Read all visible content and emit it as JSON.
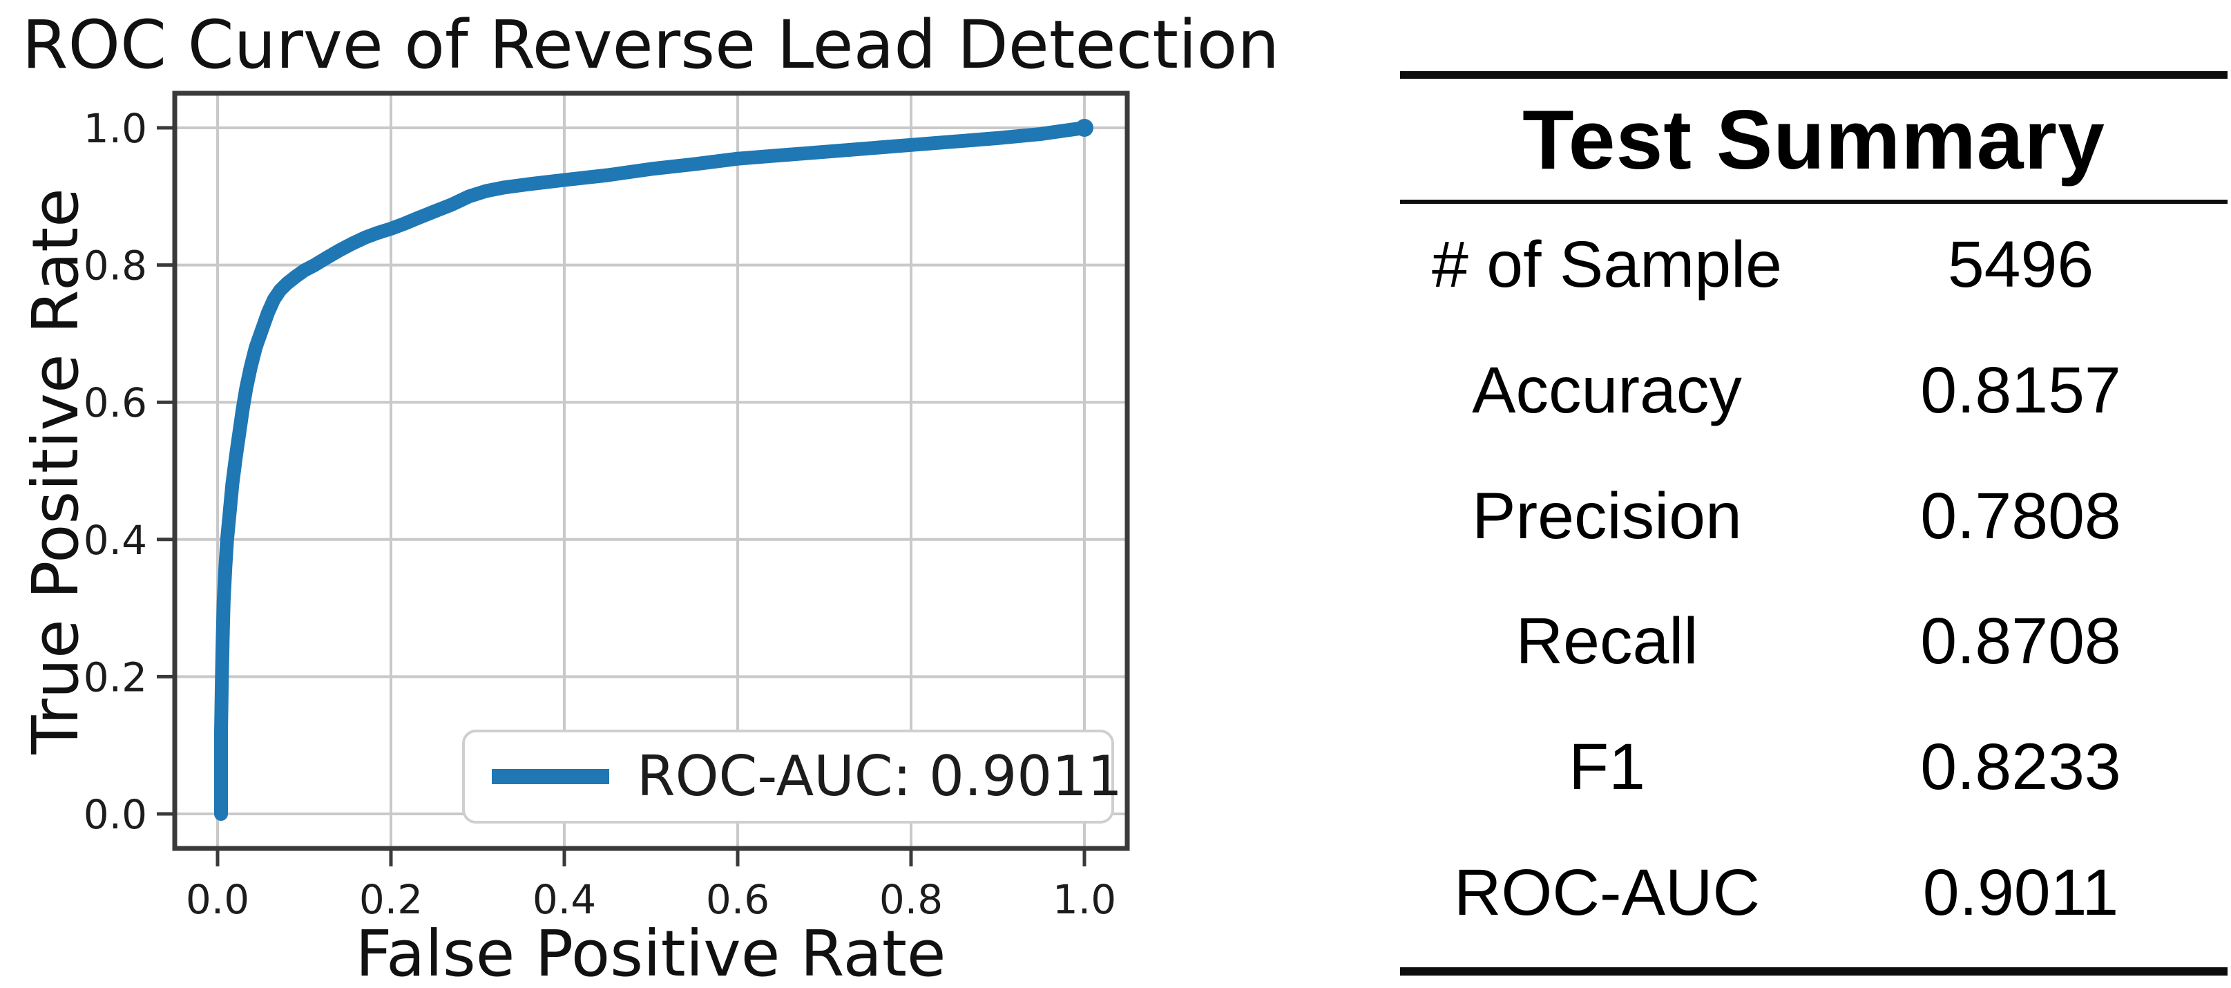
{
  "chart": {
    "title": "ROC Curve of Reverse Lead Detection",
    "xlabel": "False Positive Rate",
    "ylabel": "True Positive Rate",
    "legend_label": "ROC-AUC: 0.9011"
  },
  "chart_data": {
    "type": "line",
    "title": "ROC Curve of Reverse Lead Detection",
    "xlabel": "False Positive Rate",
    "ylabel": "True Positive Rate",
    "xlim": [
      -0.05,
      1.05
    ],
    "ylim": [
      -0.05,
      1.05
    ],
    "x_ticks": [
      0.0,
      0.2,
      0.4,
      0.6,
      0.8,
      1.0
    ],
    "y_ticks": [
      0.0,
      0.2,
      0.4,
      0.6,
      0.8,
      1.0
    ],
    "x_tick_labels": [
      "0.0",
      "0.2",
      "0.4",
      "0.6",
      "0.8",
      "1.0"
    ],
    "y_tick_labels": [
      "0.0",
      "0.2",
      "0.4",
      "0.6",
      "0.8",
      "1.0"
    ],
    "grid": true,
    "legend_position": "lower right",
    "series": [
      {
        "name": "ROC-AUC: 0.9011",
        "color": "#1f77b4",
        "roc_auc": 0.9011,
        "points": [
          [
            0.004,
            0.0
          ],
          [
            0.004,
            0.12
          ],
          [
            0.005,
            0.2
          ],
          [
            0.006,
            0.26
          ],
          [
            0.007,
            0.31
          ],
          [
            0.009,
            0.36
          ],
          [
            0.011,
            0.4
          ],
          [
            0.014,
            0.44
          ],
          [
            0.017,
            0.48
          ],
          [
            0.021,
            0.52
          ],
          [
            0.025,
            0.555
          ],
          [
            0.029,
            0.59
          ],
          [
            0.033,
            0.62
          ],
          [
            0.038,
            0.65
          ],
          [
            0.044,
            0.68
          ],
          [
            0.051,
            0.705
          ],
          [
            0.058,
            0.73
          ],
          [
            0.065,
            0.75
          ],
          [
            0.072,
            0.763
          ],
          [
            0.08,
            0.773
          ],
          [
            0.09,
            0.783
          ],
          [
            0.1,
            0.792
          ],
          [
            0.112,
            0.8
          ],
          [
            0.125,
            0.81
          ],
          [
            0.14,
            0.821
          ],
          [
            0.155,
            0.831
          ],
          [
            0.17,
            0.84
          ],
          [
            0.185,
            0.847
          ],
          [
            0.2,
            0.853
          ],
          [
            0.215,
            0.86
          ],
          [
            0.23,
            0.868
          ],
          [
            0.25,
            0.878
          ],
          [
            0.27,
            0.888
          ],
          [
            0.29,
            0.9
          ],
          [
            0.31,
            0.908
          ],
          [
            0.33,
            0.913
          ],
          [
            0.36,
            0.918
          ],
          [
            0.4,
            0.924
          ],
          [
            0.45,
            0.931
          ],
          [
            0.5,
            0.94
          ],
          [
            0.55,
            0.947
          ],
          [
            0.6,
            0.955
          ],
          [
            0.65,
            0.96
          ],
          [
            0.7,
            0.965
          ],
          [
            0.75,
            0.97
          ],
          [
            0.8,
            0.975
          ],
          [
            0.85,
            0.98
          ],
          [
            0.9,
            0.985
          ],
          [
            0.95,
            0.991
          ],
          [
            1.0,
            1.0
          ]
        ]
      }
    ]
  },
  "table": {
    "title": "Test Summary",
    "rows": [
      {
        "label": "# of Sample",
        "value": "5496"
      },
      {
        "label": "Accuracy",
        "value": "0.8157"
      },
      {
        "label": "Precision",
        "value": "0.7808"
      },
      {
        "label": "Recall",
        "value": "0.8708"
      },
      {
        "label": "F1",
        "value": "0.8233"
      },
      {
        "label": "ROC-AUC",
        "value": "0.9011"
      }
    ]
  },
  "colors": {
    "curve": "#1f77b4",
    "grid": "#c9c9c9",
    "spine": "#3a3a3a",
    "legend_border": "#cfcfcf",
    "text": "#111111",
    "background": "#ffffff"
  }
}
